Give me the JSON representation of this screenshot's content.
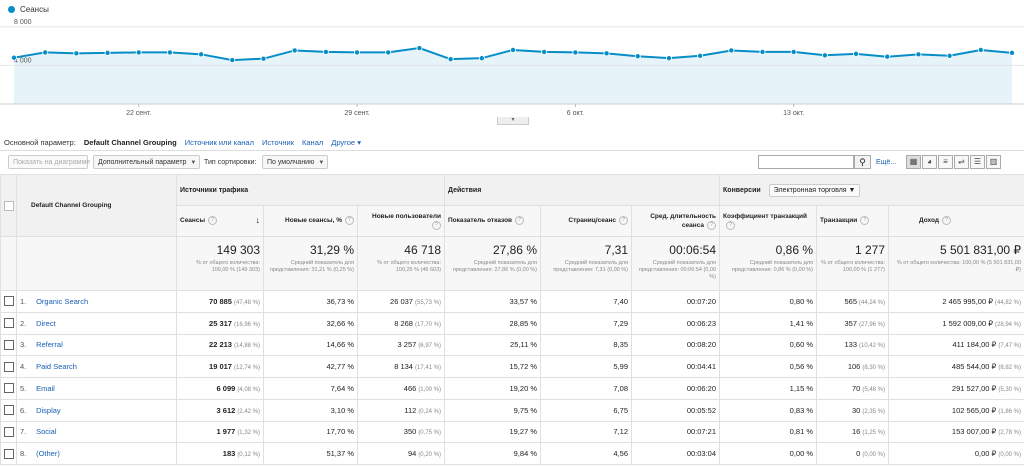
{
  "legend": {
    "label": "Сеансы",
    "color": "#058dc7"
  },
  "chart_data": {
    "type": "line",
    "series": [
      {
        "name": "Сеансы",
        "values": [
          4800,
          5350,
          5250,
          5300,
          5350,
          5350,
          5150,
          4550,
          4700,
          5550,
          5400,
          5350,
          5350,
          5800,
          4650,
          4750,
          5600,
          5400,
          5350,
          5250,
          4950,
          4750,
          5000,
          5550,
          5400,
          5400,
          5050,
          5200,
          4900,
          5150,
          5000,
          5600,
          5300
        ]
      }
    ],
    "ytick_labels": [
      "8 000",
      "4 000"
    ],
    "yticks": [
      8000,
      4000
    ],
    "ylim": [
      0,
      8500
    ],
    "xtick_labels": [
      "22 сент.",
      "29 сент.",
      "6 окт.",
      "13 окт."
    ],
    "xtick_index": [
      4,
      11,
      18,
      25
    ],
    "grid": true
  },
  "dims": {
    "label": "Основной параметр:",
    "active": "Default Channel Grouping",
    "links": [
      "Источник или канал",
      "Источник",
      "Канал"
    ],
    "other": "Другое"
  },
  "toolbar": {
    "plot_btn": "Показать на диаграмме",
    "secondary": "Дополнительный параметр",
    "sort_label": "Тип сортировки:",
    "sort_value": "По умолчанию",
    "search_placeholder": "",
    "advanced": "Ещё..."
  },
  "table": {
    "dim_header": "Default Channel Grouping",
    "groups": {
      "acq": "Источники трафика",
      "beh": "Действия",
      "conv": "Конверсии",
      "conv_select": "Электронная торговля"
    },
    "cols": [
      "Сеансы",
      "Новые сеансы, %",
      "Новые пользователи",
      "Показатель отказов",
      "Страниц/сеанс",
      "Сред. длительность сеанса",
      "Коэффициент транзакций",
      "Транзакции",
      "Доход"
    ],
    "totals": [
      {
        "v": "149 303",
        "s": "% от общего количества: 100,00 % (149 303)"
      },
      {
        "v": "31,29 %",
        "s": "Средний показатель для представления: 31,21 % (0,25 %)"
      },
      {
        "v": "46 718",
        "s": "% от общего количества: 100,25 % (46 603)"
      },
      {
        "v": "27,86 %",
        "s": "Средний показатель для представления: 27,86 % (0,00 %)"
      },
      {
        "v": "7,31",
        "s": "Средний показатель для представления: 7,31 (0,00 %)"
      },
      {
        "v": "00:06:54",
        "s": "Средний показатель для представления: 00:06:54 (0,00 %)"
      },
      {
        "v": "0,86 %",
        "s": "Средний показатель для представления: 0,86 % (0,00 %)"
      },
      {
        "v": "1 277",
        "s": "% от общего количества: 100,00 % (1 277)"
      },
      {
        "v": "5 501 831,00 ₽",
        "s": "% от общего количества: 100,00 % (5 501 831,00 ₽)"
      }
    ],
    "rows": [
      {
        "n": "1.",
        "name": "Organic Search",
        "sessions": "70 885",
        "sessions_pct": "(47,48 %)",
        "new_pct": "36,73 %",
        "new_users": "26 037",
        "new_users_pct": "(55,73 %)",
        "bounce": "33,57 %",
        "pages": "7,40",
        "dur": "00:07:20",
        "conv": "0,80 %",
        "trans": "565",
        "trans_pct": "(44,24 %)",
        "rev": "2 465 995,00 ₽",
        "rev_pct": "(44,82 %)"
      },
      {
        "n": "2.",
        "name": "Direct",
        "sessions": "25 317",
        "sessions_pct": "(16,96 %)",
        "new_pct": "32,66 %",
        "new_users": "8 268",
        "new_users_pct": "(17,70 %)",
        "bounce": "28,85 %",
        "pages": "7,29",
        "dur": "00:06:23",
        "conv": "1,41 %",
        "trans": "357",
        "trans_pct": "(27,96 %)",
        "rev": "1 592 009,00 ₽",
        "rev_pct": "(28,94 %)"
      },
      {
        "n": "3.",
        "name": "Referral",
        "sessions": "22 213",
        "sessions_pct": "(14,88 %)",
        "new_pct": "14,66 %",
        "new_users": "3 257",
        "new_users_pct": "(6,97 %)",
        "bounce": "25,11 %",
        "pages": "8,35",
        "dur": "00:08:20",
        "conv": "0,60 %",
        "trans": "133",
        "trans_pct": "(10,42 %)",
        "rev": "411 184,00 ₽",
        "rev_pct": "(7,47 %)"
      },
      {
        "n": "4.",
        "name": "Paid Search",
        "sessions": "19 017",
        "sessions_pct": "(12,74 %)",
        "new_pct": "42,77 %",
        "new_users": "8 134",
        "new_users_pct": "(17,41 %)",
        "bounce": "15,72 %",
        "pages": "5,99",
        "dur": "00:04:41",
        "conv": "0,56 %",
        "trans": "106",
        "trans_pct": "(8,30 %)",
        "rev": "485 544,00 ₽",
        "rev_pct": "(8,82 %)"
      },
      {
        "n": "5.",
        "name": "Email",
        "sessions": "6 099",
        "sessions_pct": "(4,08 %)",
        "new_pct": "7,64 %",
        "new_users": "466",
        "new_users_pct": "(1,00 %)",
        "bounce": "19,20 %",
        "pages": "7,08",
        "dur": "00:06:20",
        "conv": "1,15 %",
        "trans": "70",
        "trans_pct": "(5,48 %)",
        "rev": "291 527,00 ₽",
        "rev_pct": "(5,30 %)"
      },
      {
        "n": "6.",
        "name": "Display",
        "sessions": "3 612",
        "sessions_pct": "(2,42 %)",
        "new_pct": "3,10 %",
        "new_users": "112",
        "new_users_pct": "(0,24 %)",
        "bounce": "9,75 %",
        "pages": "6,75",
        "dur": "00:05:52",
        "conv": "0,83 %",
        "trans": "30",
        "trans_pct": "(2,35 %)",
        "rev": "102 565,00 ₽",
        "rev_pct": "(1,86 %)"
      },
      {
        "n": "7.",
        "name": "Social",
        "sessions": "1 977",
        "sessions_pct": "(1,32 %)",
        "new_pct": "17,70 %",
        "new_users": "350",
        "new_users_pct": "(0,75 %)",
        "bounce": "19,27 %",
        "pages": "7,12",
        "dur": "00:07:21",
        "conv": "0,81 %",
        "trans": "16",
        "trans_pct": "(1,25 %)",
        "rev": "153 007,00 ₽",
        "rev_pct": "(2,78 %)"
      },
      {
        "n": "8.",
        "name": "(Other)",
        "sessions": "183",
        "sessions_pct": "(0,12 %)",
        "new_pct": "51,37 %",
        "new_users": "94",
        "new_users_pct": "(0,20 %)",
        "bounce": "9,84 %",
        "pages": "4,56",
        "dur": "00:03:04",
        "conv": "0,00 %",
        "trans": "0",
        "trans_pct": "(0,00 %)",
        "rev": "0,00 ₽",
        "rev_pct": "(0,00 %)"
      }
    ]
  }
}
